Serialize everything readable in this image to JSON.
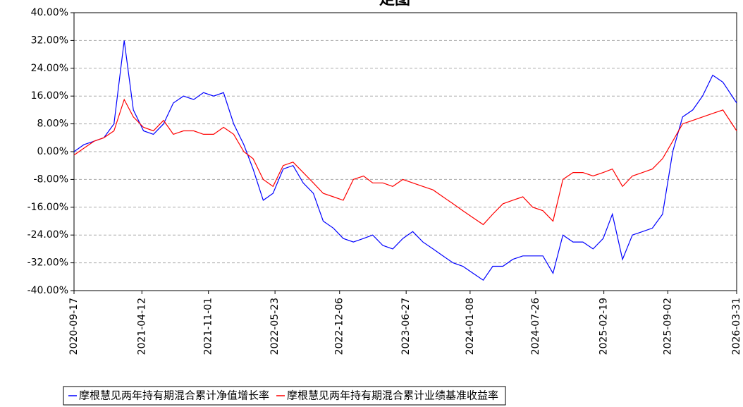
{
  "chart_data": {
    "type": "line",
    "title": "走图",
    "x": [
      "2020-09-17",
      "2020-10-17",
      "2020-11-17",
      "2020-12-17",
      "2021-01-17",
      "2021-02-17",
      "2021-03-17",
      "2021-04-17",
      "2021-05-17",
      "2021-06-17",
      "2021-07-17",
      "2021-08-17",
      "2021-09-17",
      "2021-10-17",
      "2021-11-17",
      "2021-12-17",
      "2022-01-17",
      "2022-02-17",
      "2022-03-17",
      "2022-04-17",
      "2022-05-17",
      "2022-06-17",
      "2022-07-17",
      "2022-08-17",
      "2022-09-17",
      "2022-10-17",
      "2022-11-17",
      "2022-12-17",
      "2023-01-17",
      "2023-02-17",
      "2023-03-17",
      "2023-04-17",
      "2023-05-17",
      "2023-06-17",
      "2023-07-17",
      "2023-08-17",
      "2023-09-17",
      "2023-10-17",
      "2023-11-17",
      "2023-12-17",
      "2024-01-17",
      "2024-02-17",
      "2024-03-17",
      "2024-04-17",
      "2024-05-17",
      "2024-06-17",
      "2024-07-17",
      "2024-08-17",
      "2024-09-17",
      "2024-10-17",
      "2024-11-17",
      "2024-12-17",
      "2025-01-17",
      "2025-02-17",
      "2025-03-17",
      "2025-04-17",
      "2025-05-17",
      "2025-06-17",
      "2025-07-17",
      "2025-08-17",
      "2025-09-17",
      "2025-10-17",
      "2025-11-17",
      "2025-12-17",
      "2026-01-17",
      "2026-02-17",
      "2026-03-31"
    ],
    "series": [
      {
        "name": "摩根慧见两年持有期混合累计净值增长率",
        "color": "#0000ff",
        "values": [
          0,
          2,
          3,
          4,
          8,
          32,
          12,
          6,
          5,
          8,
          14,
          16,
          15,
          17,
          16,
          17,
          8,
          2,
          -5,
          -14,
          -12,
          -5,
          -4,
          -9,
          -12,
          -20,
          -22,
          -25,
          -26,
          -25,
          -24,
          -27,
          -28,
          -25,
          -23,
          -26,
          -28,
          -30,
          -32,
          -33,
          -35,
          -37,
          -33,
          -33,
          -31,
          -30,
          -30,
          -30,
          -35,
          -24,
          -26,
          -26,
          -28,
          -25,
          -18,
          -31,
          -24,
          -23,
          -22,
          -18,
          0,
          10,
          12,
          16,
          22,
          20,
          14
        ]
      },
      {
        "name": "摩根慧见两年持有期混合累计业绩基准收益率",
        "color": "#ff0000",
        "values": [
          -1,
          1,
          3,
          4,
          6,
          15,
          10,
          7,
          6,
          9,
          5,
          6,
          6,
          5,
          5,
          7,
          5,
          0,
          -2,
          -8,
          -10,
          -4,
          -3,
          -6,
          -9,
          -12,
          -13,
          -14,
          -8,
          -7,
          -9,
          -9,
          -10,
          -8,
          -9,
          -10,
          -11,
          -13,
          -15,
          -17,
          -19,
          -21,
          -18,
          -15,
          -14,
          -13,
          -16,
          -17,
          -20,
          -8,
          -6,
          -6,
          -7,
          -6,
          -5,
          -10,
          -7,
          -6,
          -5,
          -2,
          3,
          8,
          9,
          10,
          11,
          12,
          6
        ]
      }
    ],
    "xlim": [
      "2020-09-17",
      "2026-03-31"
    ],
    "xticks": [
      "2020-09-17",
      "2021-04-12",
      "2021-11-01",
      "2022-05-23",
      "2022-12-06",
      "2023-06-27",
      "2024-01-08",
      "2024-07-26",
      "2025-02-19",
      "2025-09-02",
      "2026-03-31"
    ],
    "ylim": [
      -40,
      40
    ],
    "yticks": [
      {
        "value": 40,
        "label": "40.00%"
      },
      {
        "value": 32,
        "label": "32.00%"
      },
      {
        "value": 24,
        "label": "24.00%"
      },
      {
        "value": 16,
        "label": "16.00%"
      },
      {
        "value": 8,
        "label": "8.00%"
      },
      {
        "value": 0,
        "label": "0.00%"
      },
      {
        "value": -8,
        "label": "-8.00%"
      },
      {
        "value": -16,
        "label": "-16.00%"
      },
      {
        "value": -24,
        "label": "-24.00%"
      },
      {
        "value": -32,
        "label": "-32.00%"
      },
      {
        "value": -40,
        "label": "-40.00%"
      }
    ],
    "grid": true
  }
}
